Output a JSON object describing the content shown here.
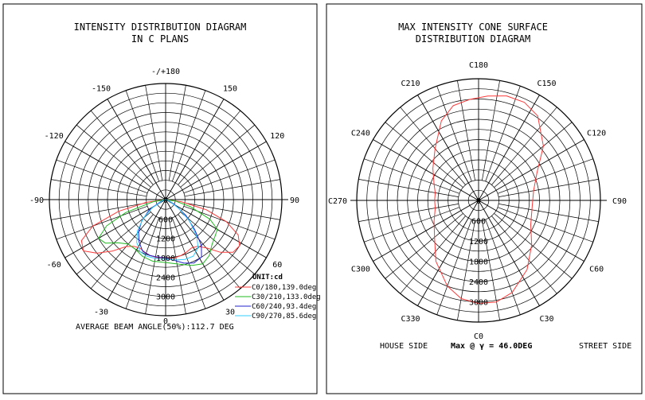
{
  "left_panel": {
    "title_line1": "INTENSITY DISTRIBUTION DIAGRAM",
    "title_line2": "IN C PLANS",
    "unit_label": "UNIT:cd",
    "footer": "AVERAGE BEAM ANGLE(50%):112.7 DEG"
  },
  "right_panel": {
    "title_line1": "MAX INTENSITY CONE SURFACE",
    "title_line2": "DISTRIBUTION DIAGRAM",
    "bottom_label_c0": "C0",
    "footer_left": "HOUSE SIDE",
    "footer_mid": "Max @ γ = 46.0DEG",
    "footer_right": "STREET SIDE"
  },
  "colors": {
    "c0_180": "#ff3b3b",
    "c30_210": "#22bb22",
    "c60_240": "#2222cc",
    "c90_270": "#33ccff",
    "cone": "#ff3b3b",
    "grid": "#000000"
  },
  "chart_data": [
    {
      "type": "polar",
      "title": "INTENSITY DISTRIBUTION DIAGRAM IN C PLANS",
      "unit": "cd",
      "angle_labels": [
        "-/+180",
        "150",
        "120",
        "90",
        "60",
        "30",
        "0",
        "-30",
        "-60",
        "-90",
        "-120",
        "-150"
      ],
      "radial_ticks": [
        0,
        600,
        1200,
        1800,
        2400,
        3000
      ],
      "rmax": 3600,
      "legend_position": "bottom-right",
      "series": [
        {
          "name": "C0/180,139.0deg",
          "color": "#ff3b3b",
          "points": [
            [
              -90,
              0
            ],
            [
              -82,
              600
            ],
            [
              -76,
              1500
            ],
            [
              -70,
              2400
            ],
            [
              -64,
              2900
            ],
            [
              -58,
              3000
            ],
            [
              -52,
              2700
            ],
            [
              -46,
              2300
            ],
            [
              -40,
              1900
            ],
            [
              -34,
              1750
            ],
            [
              -28,
              1700
            ],
            [
              -22,
              1750
            ],
            [
              -15,
              1800
            ],
            [
              -8,
              1820
            ],
            [
              0,
              1800
            ],
            [
              8,
              1830
            ],
            [
              15,
              1800
            ],
            [
              22,
              1750
            ],
            [
              28,
              1700
            ],
            [
              34,
              1750
            ],
            [
              40,
              1950
            ],
            [
              46,
              2350
            ],
            [
              52,
              2650
            ],
            [
              58,
              2700
            ],
            [
              64,
              2500
            ],
            [
              70,
              2000
            ],
            [
              76,
              1300
            ],
            [
              82,
              500
            ],
            [
              90,
              0
            ]
          ]
        },
        {
          "name": "C30/210,133.0deg",
          "color": "#22bb22",
          "points": [
            [
              -90,
              0
            ],
            [
              -80,
              400
            ],
            [
              -72,
              1300
            ],
            [
              -66,
              2000
            ],
            [
              -60,
              2400
            ],
            [
              -54,
              2300
            ],
            [
              -48,
              2000
            ],
            [
              -40,
              1800
            ],
            [
              -32,
              1800
            ],
            [
              -22,
              1900
            ],
            [
              -12,
              1950
            ],
            [
              0,
              1950
            ],
            [
              12,
              2050
            ],
            [
              22,
              2200
            ],
            [
              30,
              2300
            ],
            [
              38,
              2200
            ],
            [
              46,
              2000
            ],
            [
              54,
              1900
            ],
            [
              60,
              1850
            ],
            [
              66,
              1500
            ],
            [
              74,
              800
            ],
            [
              82,
              300
            ],
            [
              90,
              0
            ]
          ]
        },
        {
          "name": "C60/240,93.4deg",
          "color": "#2222cc",
          "points": [
            [
              -90,
              0
            ],
            [
              -70,
              150
            ],
            [
              -58,
              600
            ],
            [
              -48,
              1000
            ],
            [
              -40,
              1300
            ],
            [
              -32,
              1550
            ],
            [
              -24,
              1750
            ],
            [
              -16,
              1800
            ],
            [
              -8,
              1800
            ],
            [
              0,
              1800
            ],
            [
              8,
              1900
            ],
            [
              16,
              2050
            ],
            [
              24,
              2150
            ],
            [
              32,
              2100
            ],
            [
              38,
              1800
            ],
            [
              44,
              1300
            ],
            [
              52,
              800
            ],
            [
              62,
              300
            ],
            [
              72,
              100
            ],
            [
              90,
              0
            ]
          ]
        },
        {
          "name": "C90/270,85.6deg",
          "color": "#33ccff",
          "points": [
            [
              -90,
              0
            ],
            [
              -70,
              100
            ],
            [
              -58,
              500
            ],
            [
              -50,
              900
            ],
            [
              -42,
              1300
            ],
            [
              -34,
              1600
            ],
            [
              -26,
              1800
            ],
            [
              -18,
              1850
            ],
            [
              -10,
              1850
            ],
            [
              0,
              1850
            ],
            [
              10,
              1900
            ],
            [
              18,
              1950
            ],
            [
              26,
              1950
            ],
            [
              34,
              1800
            ],
            [
              40,
              1500
            ],
            [
              48,
              1000
            ],
            [
              56,
              500
            ],
            [
              66,
              150
            ],
            [
              90,
              0
            ]
          ]
        }
      ]
    },
    {
      "type": "polar",
      "title": "MAX INTENSITY CONE SURFACE DISTRIBUTION DIAGRAM",
      "angle_labels": [
        "C180",
        "C150",
        "C120",
        "C90",
        "C60",
        "C30",
        "C0",
        "C330",
        "C300",
        "C270",
        "C240",
        "C210"
      ],
      "radial_ticks": [
        0,
        600,
        1200,
        1800,
        2400,
        3000
      ],
      "rmax": 3600,
      "series": [
        {
          "name": "",
          "color": "#ff3b3b",
          "points": [
            [
              0,
              3050
            ],
            [
              10,
              3050
            ],
            [
              20,
              2900
            ],
            [
              35,
              2500
            ],
            [
              50,
              2050
            ],
            [
              65,
              1700
            ],
            [
              80,
              1600
            ],
            [
              90,
              1600
            ],
            [
              100,
              1650
            ],
            [
              115,
              1900
            ],
            [
              130,
              2500
            ],
            [
              145,
              3050
            ],
            [
              155,
              3200
            ],
            [
              165,
              3200
            ],
            [
              175,
              3100
            ],
            [
              185,
              3000
            ],
            [
              195,
              2900
            ],
            [
              205,
              2600
            ],
            [
              220,
              2000
            ],
            [
              235,
              1650
            ],
            [
              250,
              1400
            ],
            [
              260,
              1300
            ],
            [
              270,
              1300
            ],
            [
              280,
              1300
            ],
            [
              295,
              1450
            ],
            [
              310,
              1700
            ],
            [
              325,
              2200
            ],
            [
              340,
              2700
            ],
            [
              350,
              2950
            ],
            [
              360,
              3050
            ]
          ]
        }
      ]
    }
  ]
}
